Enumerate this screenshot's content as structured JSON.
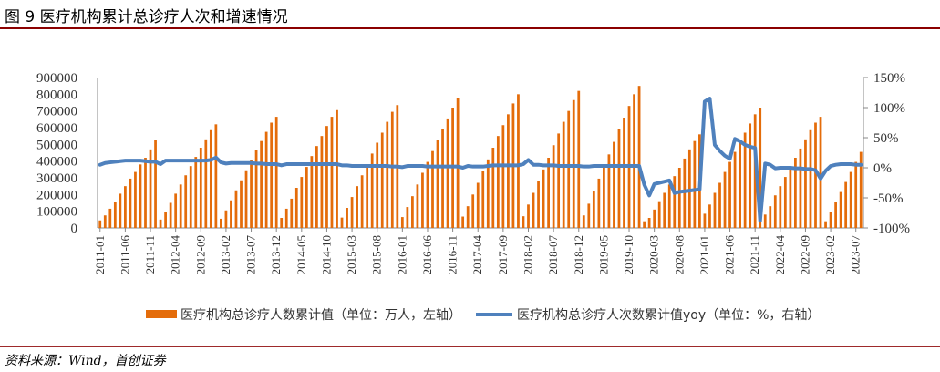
{
  "figure": {
    "title": "图 9  医疗机构累计总诊疗人次和增速情况",
    "source": "资料来源：Wind，首创证券",
    "colors": {
      "bar": "#E46C0A",
      "line": "#4F81BD",
      "title_rule": "#8B0000"
    }
  },
  "chart_data": {
    "type": "bar+line",
    "x": [
      "2011-01",
      "2011-02",
      "2011-03",
      "2011-04",
      "2011-05",
      "2011-06",
      "2011-07",
      "2011-08",
      "2011-09",
      "2011-10",
      "2011-11",
      "2011-12",
      "2012-01",
      "2012-02",
      "2012-03",
      "2012-04",
      "2012-05",
      "2012-06",
      "2012-07",
      "2012-08",
      "2012-09",
      "2012-10",
      "2012-11",
      "2012-12",
      "2013-01",
      "2013-02",
      "2013-03",
      "2013-04",
      "2013-05",
      "2013-06",
      "2013-07",
      "2013-08",
      "2013-09",
      "2013-10",
      "2013-11",
      "2013-12",
      "2014-01",
      "2014-02",
      "2014-03",
      "2014-04",
      "2014-05",
      "2014-06",
      "2014-07",
      "2014-08",
      "2014-09",
      "2014-10",
      "2014-11",
      "2014-12",
      "2015-01",
      "2015-02",
      "2015-03",
      "2015-04",
      "2015-05",
      "2015-06",
      "2015-07",
      "2015-08",
      "2015-09",
      "2015-10",
      "2015-11",
      "2015-12",
      "2016-01",
      "2016-02",
      "2016-03",
      "2016-04",
      "2016-05",
      "2016-06",
      "2016-07",
      "2016-08",
      "2016-09",
      "2016-10",
      "2016-11",
      "2016-12",
      "2017-01",
      "2017-02",
      "2017-03",
      "2017-04",
      "2017-05",
      "2017-06",
      "2017-07",
      "2017-08",
      "2017-09",
      "2017-10",
      "2017-11",
      "2017-12",
      "2018-01",
      "2018-02",
      "2018-03",
      "2018-04",
      "2018-05",
      "2018-06",
      "2018-07",
      "2018-08",
      "2018-09",
      "2018-10",
      "2018-11",
      "2018-12",
      "2019-01",
      "2019-02",
      "2019-03",
      "2019-04",
      "2019-05",
      "2019-06",
      "2019-07",
      "2019-08",
      "2019-09",
      "2019-10",
      "2019-11",
      "2019-12",
      "2020-01",
      "2020-02",
      "2020-03",
      "2020-04",
      "2020-05",
      "2020-06",
      "2020-07",
      "2020-08",
      "2020-09",
      "2020-10",
      "2020-11",
      "2020-12",
      "2021-01",
      "2021-02",
      "2021-03",
      "2021-04",
      "2021-05",
      "2021-06",
      "2021-07",
      "2021-08",
      "2021-09",
      "2021-10",
      "2021-11",
      "2021-12",
      "2022-01",
      "2022-02",
      "2022-03",
      "2022-04",
      "2022-05",
      "2022-06",
      "2022-07",
      "2022-08",
      "2022-09",
      "2022-10",
      "2022-11",
      "2022-12",
      "2023-01",
      "2023-02",
      "2023-03",
      "2023-04",
      "2023-05",
      "2023-06",
      "2023-07",
      "2023-08"
    ],
    "x_tick_labels": [
      "2011-01",
      "2011-06",
      "2011-11",
      "2012-04",
      "2012-09",
      "2013-02",
      "2013-07",
      "2013-12",
      "2014-05",
      "2014-10",
      "2015-03",
      "2015-08",
      "2016-01",
      "2016-06",
      "2016-11",
      "2017-04",
      "2017-09",
      "2018-02",
      "2018-07",
      "2018-12",
      "2019-05",
      "2019-10",
      "2020-03",
      "2020-08",
      "2021-01",
      "2021-06",
      "2021-11",
      "2022-04",
      "2022-09",
      "2023-02",
      "2023-07"
    ],
    "y_left": {
      "ticks": [
        0,
        100000,
        200000,
        300000,
        400000,
        500000,
        600000,
        700000,
        800000,
        900000
      ],
      "ylim": [
        0,
        900000
      ]
    },
    "y_right": {
      "ticks": [
        "-100%",
        "-50%",
        "0%",
        "50%",
        "100%",
        "150%"
      ],
      "ylim": [
        -1.0,
        1.5
      ]
    },
    "series": [
      {
        "name": "医疗机构总诊疗人数累计值（单位：万人，左轴）",
        "type": "bar",
        "axis": "left",
        "values": [
          45000,
          75000,
          115000,
          155000,
          205000,
          250000,
          295000,
          335000,
          380000,
          420000,
          470000,
          525000,
          50000,
          98000,
          150000,
          205000,
          260000,
          315000,
          370000,
          425000,
          480000,
          530000,
          585000,
          620000,
          55000,
          105000,
          165000,
          225000,
          285000,
          345000,
          405000,
          465000,
          520000,
          575000,
          630000,
          665000,
          60000,
          115000,
          175000,
          240000,
          305000,
          365000,
          430000,
          490000,
          550000,
          610000,
          665000,
          705000,
          62000,
          120000,
          185000,
          250000,
          315000,
          380000,
          445000,
          510000,
          570000,
          635000,
          695000,
          735000,
          65000,
          125000,
          190000,
          260000,
          330000,
          395000,
          460000,
          525000,
          590000,
          655000,
          720000,
          775000,
          68000,
          130000,
          200000,
          270000,
          340000,
          410000,
          480000,
          550000,
          615000,
          680000,
          745000,
          800000,
          70000,
          140000,
          210000,
          280000,
          350000,
          420000,
          495000,
          565000,
          635000,
          700000,
          765000,
          820000,
          75000,
          145000,
          220000,
          295000,
          365000,
          440000,
          515000,
          590000,
          660000,
          730000,
          800000,
          850000,
          40000,
          60000,
          110000,
          160000,
          210000,
          260000,
          310000,
          360000,
          415000,
          470000,
          520000,
          560000,
          85000,
          140000,
          210000,
          270000,
          335000,
          395000,
          455000,
          510000,
          570000,
          625000,
          680000,
          720000,
          80000,
          130000,
          195000,
          250000,
          305000,
          360000,
          420000,
          475000,
          530000,
          585000,
          630000,
          665000,
          40000,
          95000,
          155000,
          215000,
          275000,
          335000,
          395000,
          455000
        ]
      },
      {
        "name": "医疗机构总诊疗人次数累计值yoy（单位：%，右轴）",
        "type": "line",
        "axis": "right",
        "values": [
          0.05,
          0.08,
          0.09,
          0.1,
          0.11,
          0.12,
          0.12,
          0.12,
          0.12,
          0.11,
          0.1,
          0.1,
          0.06,
          0.12,
          0.12,
          0.12,
          0.12,
          0.12,
          0.12,
          0.12,
          0.12,
          0.12,
          0.13,
          0.17,
          0.09,
          0.07,
          0.08,
          0.08,
          0.08,
          0.08,
          0.08,
          0.07,
          0.07,
          0.06,
          0.06,
          0.06,
          0.04,
          0.06,
          0.06,
          0.06,
          0.06,
          0.06,
          0.06,
          0.06,
          0.06,
          0.06,
          0.06,
          0.06,
          0.04,
          0.04,
          0.03,
          0.03,
          0.03,
          0.03,
          0.03,
          0.03,
          0.03,
          0.03,
          0.02,
          0.02,
          0.01,
          0.03,
          0.03,
          0.03,
          0.03,
          0.02,
          0.02,
          0.02,
          0.02,
          0.02,
          0.02,
          0.02,
          0.0,
          0.03,
          0.02,
          0.02,
          0.02,
          0.03,
          0.04,
          0.04,
          0.04,
          0.04,
          0.04,
          0.04,
          0.06,
          0.13,
          0.05,
          0.05,
          0.04,
          0.04,
          0.04,
          0.03,
          0.03,
          0.03,
          0.03,
          0.03,
          0.02,
          0.02,
          0.03,
          0.03,
          0.03,
          0.03,
          0.03,
          0.03,
          0.03,
          0.03,
          0.03,
          0.03,
          -0.28,
          -0.46,
          -0.27,
          -0.25,
          -0.23,
          -0.21,
          -0.42,
          -0.4,
          -0.39,
          -0.38,
          -0.37,
          -0.36,
          1.1,
          1.15,
          0.38,
          0.28,
          0.2,
          0.15,
          0.48,
          0.44,
          0.38,
          0.35,
          0.33,
          -0.88,
          0.07,
          0.05,
          -0.01,
          0.0,
          0.0,
          0.0,
          -0.01,
          -0.01,
          -0.02,
          -0.02,
          -0.04,
          -0.18,
          -0.05,
          0.03,
          0.05,
          0.06,
          0.06,
          0.06,
          0.05,
          0.05
        ]
      }
    ],
    "legend": "bottom",
    "grid": false
  }
}
